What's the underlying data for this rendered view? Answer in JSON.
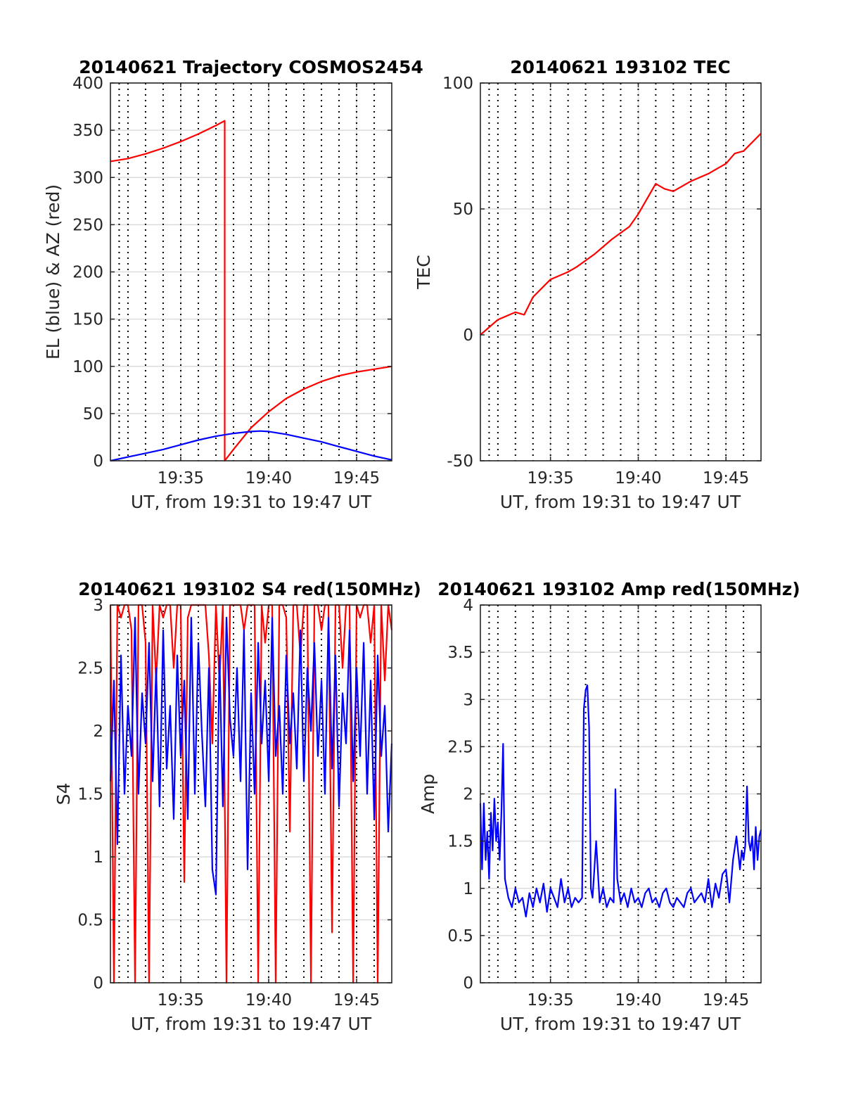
{
  "figure": {
    "background": "#ffffff"
  },
  "chart_data": [
    {
      "type": "line",
      "title": "20140621 Trajectory COSMOS2454",
      "xlabel": "UT, from 19:31 to 19:47 UT",
      "ylabel": "EL (blue) & AZ (red)",
      "xlim": [
        19.5167,
        19.7833
      ],
      "ylim": [
        0,
        400
      ],
      "xticks": [
        19.5833,
        19.6667,
        19.75
      ],
      "xticklabels": [
        "19:35",
        "19:40",
        "19:45"
      ],
      "yticks": [
        0,
        50,
        100,
        150,
        200,
        250,
        300,
        350,
        400
      ],
      "yticklabels": [
        "0",
        "50",
        "100",
        "150",
        "200",
        "250",
        "300",
        "350",
        "400"
      ],
      "vlines": [
        "19:31:30",
        "19:32",
        "19:33",
        "19:34",
        "19:35",
        "19:36",
        "19:37",
        "19:38",
        "19:39",
        "19:40",
        "19:41",
        "19:42",
        "19:43",
        "19:44",
        "19:45",
        "19:46",
        "19:47"
      ],
      "grid": true,
      "series": [
        {
          "color": "#ff0000",
          "x": [
            19.5167,
            19.5333,
            19.55,
            19.5667,
            19.5833,
            19.6,
            19.6167,
            19.625,
            19.625,
            19.6333,
            19.65,
            19.6667,
            19.6833,
            19.7,
            19.7167,
            19.7333,
            19.75,
            19.7667,
            19.7833
          ],
          "y": [
            317,
            320,
            325,
            331,
            338,
            346,
            355,
            360,
            0,
            12,
            35,
            52,
            66,
            76,
            84,
            90,
            94,
            97,
            100
          ]
        },
        {
          "color": "#0000ff",
          "x": [
            19.5167,
            19.5333,
            19.55,
            19.5667,
            19.5833,
            19.6,
            19.6167,
            19.6333,
            19.65,
            19.6583,
            19.6667,
            19.6833,
            19.7,
            19.7167,
            19.7333,
            19.75,
            19.7667,
            19.7833
          ],
          "y": [
            0,
            4,
            8,
            12,
            17,
            22,
            26,
            29,
            31,
            31.5,
            31,
            28,
            24,
            20,
            15,
            10,
            5,
            1
          ]
        }
      ]
    },
    {
      "type": "line",
      "title": "20140621 193102 TEC",
      "xlabel": "UT, from 19:31 to 19:47 UT",
      "ylabel": "TEC",
      "xlim": [
        19.5167,
        19.7833
      ],
      "ylim": [
        -50,
        100
      ],
      "xticks": [
        19.5833,
        19.6667,
        19.75
      ],
      "xticklabels": [
        "19:35",
        "19:40",
        "19:45"
      ],
      "yticks": [
        -50,
        0,
        50,
        100
      ],
      "yticklabels": [
        "-50",
        "0",
        "50",
        "100"
      ],
      "vlines": [
        "19:31:30",
        "19:32",
        "19:33",
        "19:34",
        "19:35",
        "19:36",
        "19:37",
        "19:38",
        "19:39",
        "19:40",
        "19:41",
        "19:42",
        "19:43",
        "19:44",
        "19:45",
        "19:46",
        "19:47"
      ],
      "grid": true,
      "series": [
        {
          "color": "#ff0000",
          "x": [
            19.5167,
            19.5333,
            19.55,
            19.5583,
            19.5667,
            19.5833,
            19.6,
            19.6083,
            19.625,
            19.6417,
            19.6583,
            19.6667,
            19.675,
            19.6833,
            19.6917,
            19.7,
            19.7167,
            19.7333,
            19.7417,
            19.75,
            19.7583,
            19.7667,
            19.7833
          ],
          "y": [
            0,
            6,
            9,
            8,
            15,
            22,
            25,
            27,
            32,
            38,
            43,
            48,
            54,
            60,
            58,
            57,
            61,
            64,
            66,
            68,
            72,
            73,
            80
          ]
        }
      ]
    },
    {
      "type": "line",
      "title": "20140621 193102 S4 red(150MHz)",
      "xlabel": "UT, from 19:31 to 19:47 UT",
      "ylabel": "S4",
      "xlim": [
        19.5167,
        19.7833
      ],
      "ylim": [
        0,
        3
      ],
      "xticks": [
        19.5833,
        19.6667,
        19.75
      ],
      "xticklabels": [
        "19:35",
        "19:40",
        "19:45"
      ],
      "yticks": [
        0,
        0.5,
        1,
        1.5,
        2,
        2.5,
        3
      ],
      "yticklabels": [
        "0",
        "0.5",
        "1",
        "1.5",
        "2",
        "2.5",
        "3"
      ],
      "vlines": [
        "19:31:30",
        "19:32",
        "19:33",
        "19:34",
        "19:35",
        "19:36",
        "19:37",
        "19:38",
        "19:39",
        "19:40",
        "19:41",
        "19:42",
        "19:43",
        "19:44",
        "19:45",
        "19:46",
        "19:47"
      ],
      "grid": true,
      "series": [
        {
          "color": "#ff0000",
          "x": [
            19.5167,
            19.52,
            19.5233,
            19.5267,
            19.53,
            19.5333,
            19.5367,
            19.54,
            19.5433,
            19.5467,
            19.55,
            19.5533,
            19.5567,
            19.56,
            19.5633,
            19.5667,
            19.57,
            19.5733,
            19.5767,
            19.58,
            19.5833,
            19.5867,
            19.59,
            19.5933,
            19.5967,
            19.6,
            19.6033,
            19.6067,
            19.61,
            19.6133,
            19.6167,
            19.62,
            19.6233,
            19.6267,
            19.63,
            19.6333,
            19.6367,
            19.64,
            19.6433,
            19.6467,
            19.65,
            19.6533,
            19.6567,
            19.66,
            19.6633,
            19.6667,
            19.67,
            19.6733,
            19.6767,
            19.68,
            19.6833,
            19.6867,
            19.69,
            19.6933,
            19.6967,
            19.7,
            19.7033,
            19.7067,
            19.71,
            19.7133,
            19.7167,
            19.72,
            19.7233,
            19.7267,
            19.73,
            19.7333,
            19.7367,
            19.74,
            19.7433,
            19.7467,
            19.75,
            19.7533,
            19.7567,
            19.76,
            19.7633,
            19.7667,
            19.77,
            19.7733,
            19.7767,
            19.78,
            19.7833
          ],
          "y": [
            3,
            0,
            3,
            2.9,
            3,
            3,
            2.8,
            0,
            3,
            3,
            2.7,
            0,
            3,
            2.4,
            3,
            2.9,
            3,
            3,
            2.5,
            3,
            3,
            0.8,
            2.9,
            3,
            3,
            3,
            3,
            3,
            2.6,
            1.9,
            3,
            2.4,
            3,
            0,
            3,
            3,
            3,
            3,
            2.8,
            3,
            3,
            3,
            0,
            3,
            2.7,
            3,
            3,
            0,
            3,
            3,
            2.9,
            1.2,
            3,
            3,
            2.6,
            3,
            3,
            0,
            3,
            3,
            2.8,
            3,
            3,
            0.4,
            3,
            3,
            2.5,
            3,
            3,
            0,
            3,
            2.9,
            3,
            3,
            2.7,
            3,
            0,
            3,
            2.4,
            3,
            2.8
          ]
        },
        {
          "color": "#0000ff",
          "x": [
            19.5167,
            19.52,
            19.5233,
            19.5267,
            19.53,
            19.5333,
            19.5367,
            19.54,
            19.5433,
            19.5467,
            19.55,
            19.5533,
            19.5567,
            19.56,
            19.5633,
            19.5667,
            19.57,
            19.5733,
            19.5767,
            19.58,
            19.5833,
            19.5867,
            19.59,
            19.5933,
            19.5967,
            19.6,
            19.6033,
            19.6067,
            19.61,
            19.6133,
            19.6167,
            19.62,
            19.6233,
            19.6267,
            19.63,
            19.6333,
            19.6367,
            19.64,
            19.6433,
            19.6467,
            19.65,
            19.6533,
            19.6567,
            19.66,
            19.6633,
            19.6667,
            19.67,
            19.6733,
            19.6767,
            19.68,
            19.6833,
            19.6867,
            19.69,
            19.6933,
            19.6967,
            19.7,
            19.7033,
            19.7067,
            19.71,
            19.7133,
            19.7167,
            19.72,
            19.7233,
            19.7267,
            19.73,
            19.7333,
            19.7367,
            19.74,
            19.7433,
            19.7467,
            19.75,
            19.7533,
            19.7567,
            19.76,
            19.7633,
            19.7667,
            19.77,
            19.7733,
            19.7767,
            19.78,
            19.7833
          ],
          "y": [
            1.6,
            2.4,
            1.1,
            2.6,
            1.5,
            2.2,
            1.8,
            2.9,
            1.5,
            2.3,
            1.9,
            2.7,
            1.6,
            2.5,
            1.4,
            2.8,
            1.7,
            2.2,
            1.3,
            2.6,
            1.8,
            2.4,
            1.3,
            2.9,
            1.5,
            2.7,
            2,
            1.4,
            2.5,
            0.9,
            0.7,
            2.6,
            1.4,
            2.9,
            2.1,
            1.8,
            2.5,
            1.6,
            2.8,
            0.9,
            2.3,
            1.5,
            2.7,
            1.9,
            2.4,
            1.6,
            2.9,
            1.8,
            2.2,
            1.5,
            2.6,
            1.9,
            2.3,
            1.7,
            2.8,
            1.6,
            2.5,
            2,
            2.7,
            1.8,
            2.4,
            1.5,
            2.9,
            1.7,
            2.6,
            1.4,
            2.3,
            1.9,
            2.8,
            1.6,
            2.5,
            1.8,
            2.7,
            1.5,
            2.4,
            1.3,
            2.6,
            1.8,
            2.2,
            1.2,
            1.9
          ]
        }
      ]
    },
    {
      "type": "line",
      "title": "20140621 193102 Amp red(150MHz)",
      "xlabel": "UT, from 19:31 to 19:47 UT",
      "ylabel": "Amp",
      "xlim": [
        19.5167,
        19.7833
      ],
      "ylim": [
        0,
        4
      ],
      "xticks": [
        19.5833,
        19.6667,
        19.75
      ],
      "xticklabels": [
        "19:35",
        "19:40",
        "19:45"
      ],
      "yticks": [
        0,
        0.5,
        1,
        1.5,
        2,
        2.5,
        3,
        3.5,
        4
      ],
      "yticklabels": [
        "0",
        "0.5",
        "1",
        "1.5",
        "2",
        "2.5",
        "3",
        "3.5",
        "4"
      ],
      "vlines": [
        "19:31:30",
        "19:32",
        "19:33",
        "19:34",
        "19:35",
        "19:36",
        "19:37",
        "19:38",
        "19:39",
        "19:40",
        "19:41",
        "19:42",
        "19:43",
        "19:44",
        "19:45",
        "19:46",
        "19:47"
      ],
      "grid": true,
      "series": [
        {
          "color": "#0000ff",
          "x": [
            19.5167,
            19.5183,
            19.52,
            19.5217,
            19.5233,
            19.525,
            19.5267,
            19.5283,
            19.53,
            19.5317,
            19.5333,
            19.535,
            19.5367,
            19.5383,
            19.54,
            19.5433,
            19.5467,
            19.55,
            19.5533,
            19.5567,
            19.56,
            19.5633,
            19.5667,
            19.57,
            19.5733,
            19.5767,
            19.58,
            19.5833,
            19.5867,
            19.59,
            19.5933,
            19.5967,
            19.6,
            19.6033,
            19.6067,
            19.61,
            19.6133,
            19.615,
            19.6167,
            19.6183,
            19.62,
            19.6217,
            19.6233,
            19.6267,
            19.63,
            19.6333,
            19.6367,
            19.64,
            19.6433,
            19.645,
            19.6467,
            19.65,
            19.6533,
            19.6567,
            19.66,
            19.6633,
            19.6667,
            19.67,
            19.6733,
            19.6767,
            19.68,
            19.6833,
            19.6867,
            19.69,
            19.6933,
            19.6967,
            19.7,
            19.7033,
            19.7067,
            19.71,
            19.7133,
            19.7167,
            19.72,
            19.7233,
            19.7267,
            19.73,
            19.7333,
            19.7367,
            19.74,
            19.7433,
            19.7467,
            19.75,
            19.7533,
            19.7567,
            19.76,
            19.7633,
            19.765,
            19.7667,
            19.7683,
            19.77,
            19.7717,
            19.7733,
            19.775,
            19.7767,
            19.7783,
            19.78,
            19.7817,
            19.7833
          ],
          "y": [
            1.9,
            1.2,
            1.9,
            1.3,
            1.6,
            1.1,
            1.8,
            1.4,
            1.95,
            1.5,
            1.7,
            1.3,
            1.8,
            2.53,
            1.1,
            0.9,
            0.8,
            1.0,
            0.85,
            0.9,
            0.7,
            0.95,
            0.8,
            1.0,
            0.85,
            1.05,
            0.75,
            1.0,
            0.9,
            0.8,
            1.1,
            0.85,
            1.0,
            0.8,
            0.9,
            0.85,
            0.9,
            2.9,
            3.1,
            3.15,
            2.7,
            1.0,
            0.9,
            1.5,
            0.85,
            1.0,
            0.8,
            0.9,
            0.85,
            2.05,
            1.1,
            0.85,
            0.95,
            0.8,
            1.0,
            0.85,
            0.9,
            0.8,
            0.95,
            1.0,
            0.85,
            0.9,
            0.8,
            0.95,
            1.0,
            0.85,
            0.8,
            0.9,
            0.85,
            0.8,
            0.95,
            1.0,
            0.85,
            0.9,
            0.95,
            0.85,
            1.1,
            0.8,
            1.05,
            0.9,
            1.15,
            1.2,
            0.85,
            1.3,
            1.55,
            1.2,
            1.4,
            1.3,
            1.45,
            2.08,
            1.5,
            1.4,
            1.55,
            1.2,
            1.65,
            1.3,
            1.55,
            1.62
          ]
        }
      ]
    }
  ]
}
